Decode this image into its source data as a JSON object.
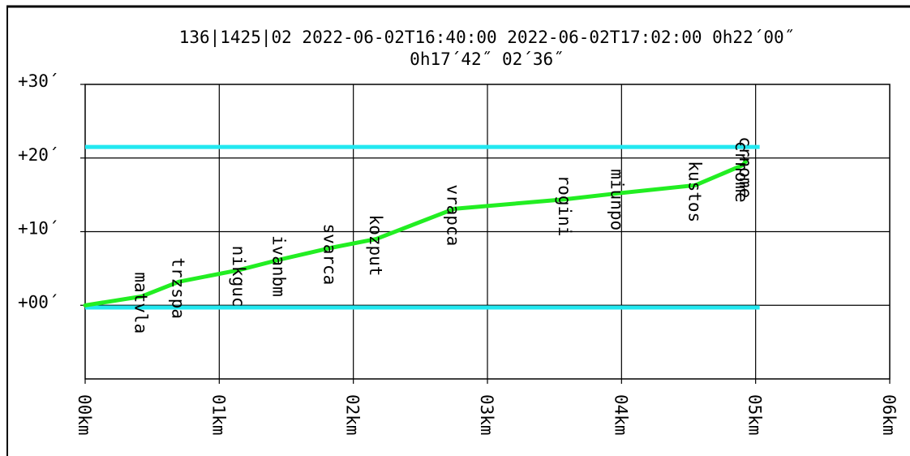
{
  "chart_data": {
    "type": "line",
    "title_line1": "136|1425|02 2022-06-02T16:40:00 2022-06-02T17:02:00 0h22´00˝",
    "title_line2": "0h17´42˝ 02´36˝",
    "x_ticks": [
      {
        "value": 0,
        "label": "00km"
      },
      {
        "value": 1,
        "label": "01km"
      },
      {
        "value": 2,
        "label": "02km"
      },
      {
        "value": 3,
        "label": "03km"
      },
      {
        "value": 4,
        "label": "04km"
      },
      {
        "value": 5,
        "label": "05km"
      },
      {
        "value": 6,
        "label": "06km"
      }
    ],
    "y_ticks": [
      {
        "value": 0,
        "label": "+00´"
      },
      {
        "value": 10,
        "label": "+10´"
      },
      {
        "value": 20,
        "label": "+20´"
      },
      {
        "value": 30,
        "label": "+30´"
      }
    ],
    "xlim": [
      0,
      6
    ],
    "ylim": [
      -10,
      30
    ],
    "grid": true,
    "reference_lines": [
      {
        "y": 21.5,
        "x_from": 0,
        "x_to": 5.03,
        "color": "#22e8f0"
      },
      {
        "y": -0.3,
        "x_from": 0,
        "x_to": 5.03,
        "color": "#22e8f0"
      }
    ],
    "series": [
      {
        "color": "#22ee22",
        "points": [
          {
            "x": 0.0,
            "y": 0.0,
            "label": ""
          },
          {
            "x": 0.42,
            "y": 1.2,
            "label": "matvla"
          },
          {
            "x": 0.7,
            "y": 3.2,
            "label": "trzspa"
          },
          {
            "x": 1.15,
            "y": 4.8,
            "label": "nikguc"
          },
          {
            "x": 1.45,
            "y": 6.2,
            "label": "ivanbm"
          },
          {
            "x": 1.83,
            "y": 7.8,
            "label": "svarca"
          },
          {
            "x": 2.17,
            "y": 9.0,
            "label": "kozput"
          },
          {
            "x": 2.75,
            "y": 13.1,
            "label": "vrapca"
          },
          {
            "x": 3.58,
            "y": 14.4,
            "label": "rogini"
          },
          {
            "x": 3.97,
            "y": 15.2,
            "label": "miunpo"
          },
          {
            "x": 4.55,
            "y": 16.3,
            "label": "kustos"
          },
          {
            "x": 4.9,
            "y": 19.0,
            "label": "crnome"
          },
          {
            "x": 4.93,
            "y": 19.6,
            "label": "crnome"
          }
        ]
      }
    ]
  }
}
